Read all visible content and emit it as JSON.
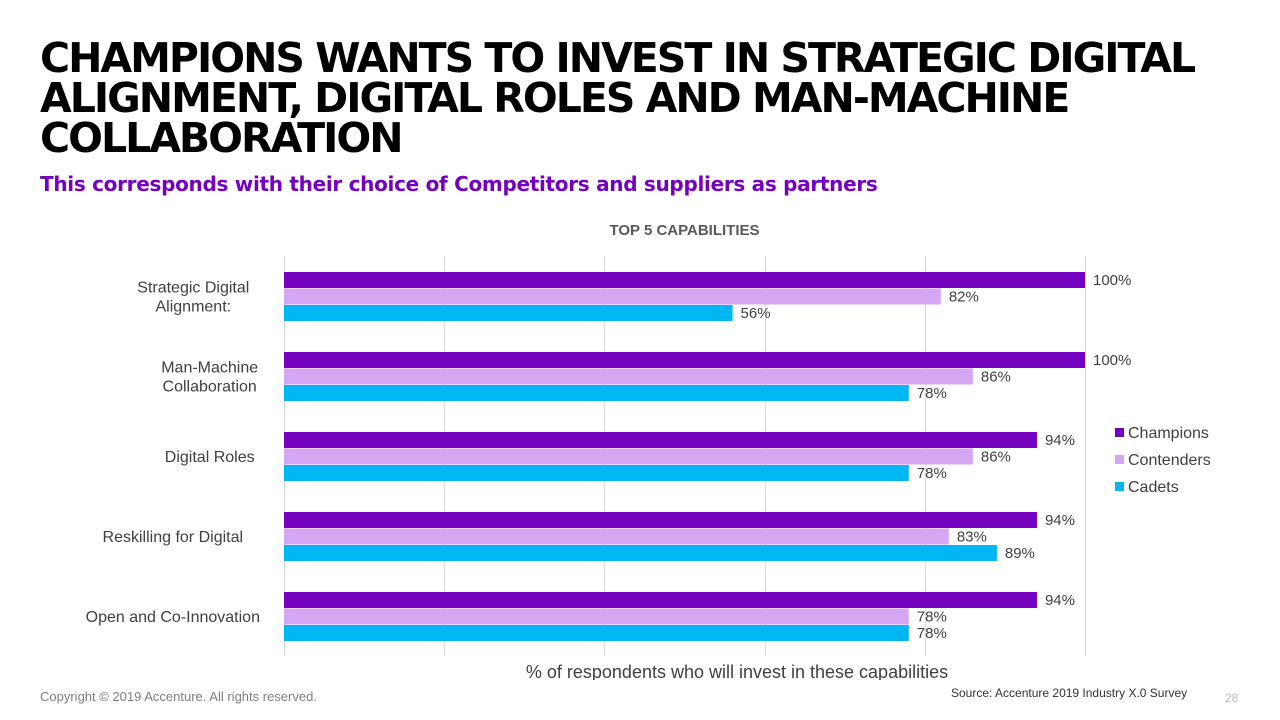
{
  "slide": {
    "title": "CHAMPIONS WANTS TO INVEST IN STRATEGIC DIGITAL ALIGNMENT, DIGITAL ROLES AND MAN-MACHINE COLLABORATION",
    "subtitle": "This corresponds with their choice of Competitors and suppliers as partners",
    "copyright": "Copyright © 2019 Accenture. All rights reserved.",
    "source": "Source: Accenture 2019 Industry X.0 Survey",
    "page_number": "28",
    "colors": {
      "title": "#000000",
      "subtitle": "#7500c0"
    }
  },
  "chart_data": {
    "type": "bar",
    "orientation": "horizontal",
    "title": "TOP 5 CAPABILITIES",
    "xlabel": "% of respondents who will invest in these capabilities",
    "ylabel": "",
    "categories": [
      "Strategic Digital Alignment:",
      "Man-Machine Collaboration",
      "Digital Roles",
      "Reskilling for Digital",
      "Open and Co-Innovation"
    ],
    "category_lines": [
      [
        "Strategic Digital",
        "Alignment:"
      ],
      [
        "Man-Machine",
        "Collaboration"
      ],
      [
        "Digital Roles"
      ],
      [
        "Reskilling for Digital"
      ],
      [
        "Open and Co-Innovation"
      ]
    ],
    "series": [
      {
        "name": "Champions",
        "color": "#7500c0",
        "values": [
          100,
          100,
          94,
          94,
          94
        ],
        "labels": [
          "100%",
          "100%",
          "94%",
          "94%",
          "94%"
        ]
      },
      {
        "name": "Contenders",
        "color": "#d5a6f2",
        "values": [
          82,
          86,
          86,
          83,
          78
        ],
        "labels": [
          "82%",
          "86%",
          "86%",
          "83%",
          "78%"
        ]
      },
      {
        "name": "Cadets",
        "color": "#00b7f2",
        "values": [
          56,
          78,
          78,
          89,
          78
        ],
        "labels": [
          "56%",
          "78%",
          "78%",
          "89%",
          "78%"
        ]
      }
    ],
    "xlim": [
      0,
      100
    ],
    "grid": true,
    "legend": "right"
  }
}
